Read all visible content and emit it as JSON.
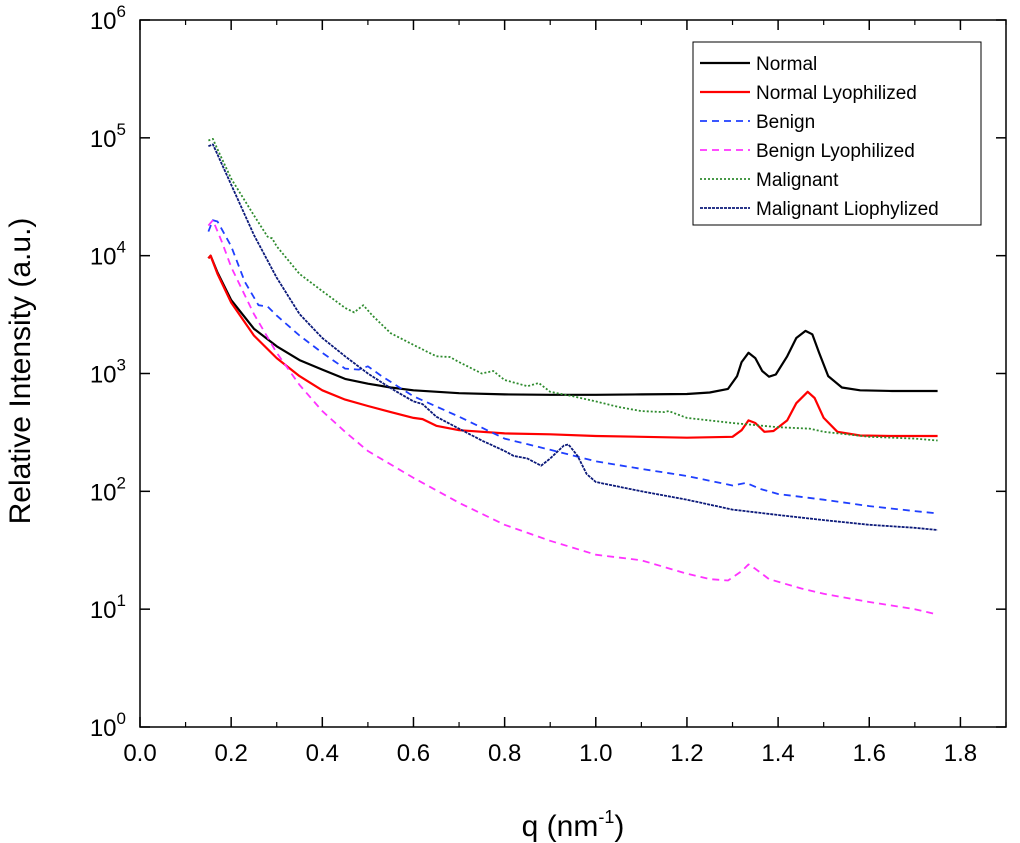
{
  "chart_data": {
    "type": "line",
    "title": "",
    "xlabel": "q (nm",
    "xlabel_sup": "-1",
    "xlabel_close": ")",
    "ylabel": "Relative Intensity (a.u.)",
    "yscale": "log",
    "xlim": [
      0.0,
      1.9
    ],
    "ylim": [
      1,
      1000000
    ],
    "x_ticks": [
      "0.0",
      "0.2",
      "0.4",
      "0.6",
      "0.8",
      "1.0",
      "1.2",
      "1.4",
      "1.6",
      "1.8"
    ],
    "y_tick_base": "10",
    "y_tick_exponents": [
      "0",
      "1",
      "2",
      "3",
      "4",
      "5",
      "6"
    ],
    "legend_position": "top-right",
    "series": [
      {
        "name": "Normal",
        "color": "#000000",
        "dash": "solid",
        "points": [
          [
            0.15,
            9500
          ],
          [
            0.155,
            10000
          ],
          [
            0.17,
            7200
          ],
          [
            0.2,
            4200
          ],
          [
            0.25,
            2400
          ],
          [
            0.3,
            1700
          ],
          [
            0.35,
            1300
          ],
          [
            0.4,
            1080
          ],
          [
            0.45,
            900
          ],
          [
            0.5,
            820
          ],
          [
            0.55,
            760
          ],
          [
            0.6,
            720
          ],
          [
            0.7,
            680
          ],
          [
            0.8,
            665
          ],
          [
            0.9,
            660
          ],
          [
            1.0,
            660
          ],
          [
            1.1,
            665
          ],
          [
            1.2,
            670
          ],
          [
            1.25,
            690
          ],
          [
            1.29,
            740
          ],
          [
            1.31,
            950
          ],
          [
            1.32,
            1250
          ],
          [
            1.335,
            1500
          ],
          [
            1.35,
            1350
          ],
          [
            1.365,
            1050
          ],
          [
            1.38,
            940
          ],
          [
            1.395,
            980
          ],
          [
            1.42,
            1400
          ],
          [
            1.44,
            2000
          ],
          [
            1.46,
            2300
          ],
          [
            1.475,
            2150
          ],
          [
            1.49,
            1500
          ],
          [
            1.51,
            950
          ],
          [
            1.54,
            760
          ],
          [
            1.58,
            720
          ],
          [
            1.65,
            710
          ],
          [
            1.75,
            710
          ]
        ]
      },
      {
        "name": "Normal Lyophilized",
        "color": "#ff0000",
        "dash": "solid",
        "points": [
          [
            0.15,
            9500
          ],
          [
            0.155,
            10000
          ],
          [
            0.17,
            7000
          ],
          [
            0.2,
            4000
          ],
          [
            0.25,
            2100
          ],
          [
            0.3,
            1350
          ],
          [
            0.35,
            950
          ],
          [
            0.4,
            720
          ],
          [
            0.45,
            600
          ],
          [
            0.5,
            530
          ],
          [
            0.55,
            470
          ],
          [
            0.6,
            420
          ],
          [
            0.62,
            410
          ],
          [
            0.65,
            360
          ],
          [
            0.7,
            330
          ],
          [
            0.8,
            310
          ],
          [
            0.9,
            305
          ],
          [
            1.0,
            295
          ],
          [
            1.1,
            290
          ],
          [
            1.2,
            285
          ],
          [
            1.3,
            290
          ],
          [
            1.32,
            330
          ],
          [
            1.335,
            400
          ],
          [
            1.35,
            380
          ],
          [
            1.37,
            320
          ],
          [
            1.39,
            325
          ],
          [
            1.42,
            400
          ],
          [
            1.44,
            560
          ],
          [
            1.465,
            700
          ],
          [
            1.48,
            620
          ],
          [
            1.5,
            420
          ],
          [
            1.53,
            320
          ],
          [
            1.58,
            298
          ],
          [
            1.65,
            295
          ],
          [
            1.75,
            295
          ]
        ]
      },
      {
        "name": "Benign",
        "color": "#1f3fff",
        "dash": "7,5",
        "points": [
          [
            0.15,
            16000
          ],
          [
            0.16,
            20000
          ],
          [
            0.17,
            19500
          ],
          [
            0.2,
            12000
          ],
          [
            0.23,
            6000
          ],
          [
            0.26,
            3800
          ],
          [
            0.28,
            3700
          ],
          [
            0.3,
            3100
          ],
          [
            0.35,
            2100
          ],
          [
            0.4,
            1500
          ],
          [
            0.45,
            1100
          ],
          [
            0.48,
            1080
          ],
          [
            0.5,
            1150
          ],
          [
            0.53,
            950
          ],
          [
            0.6,
            640
          ],
          [
            0.7,
            430
          ],
          [
            0.8,
            280
          ],
          [
            0.9,
            225
          ],
          [
            1.0,
            180
          ],
          [
            1.1,
            155
          ],
          [
            1.2,
            135
          ],
          [
            1.3,
            112
          ],
          [
            1.33,
            118
          ],
          [
            1.36,
            105
          ],
          [
            1.4,
            95
          ],
          [
            1.5,
            85
          ],
          [
            1.6,
            75
          ],
          [
            1.7,
            68
          ],
          [
            1.75,
            65
          ]
        ]
      },
      {
        "name": "Benign Lyophilized",
        "color": "#ff33ff",
        "dash": "7,5",
        "points": [
          [
            0.15,
            18000
          ],
          [
            0.16,
            20000
          ],
          [
            0.18,
            13000
          ],
          [
            0.2,
            8000
          ],
          [
            0.25,
            3200
          ],
          [
            0.3,
            1500
          ],
          [
            0.35,
            800
          ],
          [
            0.4,
            480
          ],
          [
            0.45,
            320
          ],
          [
            0.5,
            220
          ],
          [
            0.6,
            130
          ],
          [
            0.7,
            80
          ],
          [
            0.8,
            52
          ],
          [
            0.9,
            38
          ],
          [
            1.0,
            29
          ],
          [
            1.1,
            26
          ],
          [
            1.2,
            20
          ],
          [
            1.25,
            18
          ],
          [
            1.29,
            17.5
          ],
          [
            1.32,
            21
          ],
          [
            1.335,
            24
          ],
          [
            1.35,
            22
          ],
          [
            1.38,
            18
          ],
          [
            1.45,
            15
          ],
          [
            1.5,
            13.5
          ],
          [
            1.6,
            11.5
          ],
          [
            1.7,
            10
          ],
          [
            1.75,
            9
          ]
        ]
      },
      {
        "name": "Malignant",
        "color": "#2e8b2e",
        "dash": "2,2",
        "points": [
          [
            0.15,
            95000
          ],
          [
            0.16,
            98000
          ],
          [
            0.17,
            80000
          ],
          [
            0.2,
            45000
          ],
          [
            0.25,
            22000
          ],
          [
            0.28,
            14500
          ],
          [
            0.29,
            14000
          ],
          [
            0.3,
            12000
          ],
          [
            0.35,
            7000
          ],
          [
            0.4,
            5000
          ],
          [
            0.45,
            3600
          ],
          [
            0.47,
            3300
          ],
          [
            0.49,
            3800
          ],
          [
            0.51,
            3100
          ],
          [
            0.55,
            2200
          ],
          [
            0.6,
            1750
          ],
          [
            0.65,
            1400
          ],
          [
            0.68,
            1380
          ],
          [
            0.7,
            1250
          ],
          [
            0.75,
            1000
          ],
          [
            0.775,
            1050
          ],
          [
            0.8,
            880
          ],
          [
            0.85,
            780
          ],
          [
            0.875,
            830
          ],
          [
            0.9,
            700
          ],
          [
            0.95,
            640
          ],
          [
            1.0,
            580
          ],
          [
            1.05,
            520
          ],
          [
            1.1,
            480
          ],
          [
            1.15,
            470
          ],
          [
            1.16,
            480
          ],
          [
            1.2,
            420
          ],
          [
            1.3,
            380
          ],
          [
            1.4,
            350
          ],
          [
            1.47,
            340
          ],
          [
            1.5,
            320
          ],
          [
            1.6,
            290
          ],
          [
            1.7,
            280
          ],
          [
            1.75,
            270
          ]
        ]
      },
      {
        "name": "Malignant Liophylized",
        "color": "#0c1a7a",
        "dash": "3,1",
        "points": [
          [
            0.15,
            85000
          ],
          [
            0.16,
            88000
          ],
          [
            0.2,
            40000
          ],
          [
            0.25,
            15000
          ],
          [
            0.3,
            6500
          ],
          [
            0.35,
            3200
          ],
          [
            0.4,
            2000
          ],
          [
            0.45,
            1400
          ],
          [
            0.5,
            1000
          ],
          [
            0.55,
            750
          ],
          [
            0.6,
            580
          ],
          [
            0.62,
            550
          ],
          [
            0.65,
            430
          ],
          [
            0.7,
            340
          ],
          [
            0.75,
            270
          ],
          [
            0.8,
            220
          ],
          [
            0.82,
            200
          ],
          [
            0.85,
            190
          ],
          [
            0.88,
            165
          ],
          [
            0.9,
            190
          ],
          [
            0.93,
            245
          ],
          [
            0.94,
            250
          ],
          [
            0.96,
            200
          ],
          [
            0.98,
            140
          ],
          [
            1.0,
            120
          ],
          [
            1.1,
            100
          ],
          [
            1.2,
            85
          ],
          [
            1.3,
            70
          ],
          [
            1.4,
            63
          ],
          [
            1.5,
            57
          ],
          [
            1.6,
            52
          ],
          [
            1.7,
            49
          ],
          [
            1.75,
            47
          ]
        ]
      }
    ]
  }
}
